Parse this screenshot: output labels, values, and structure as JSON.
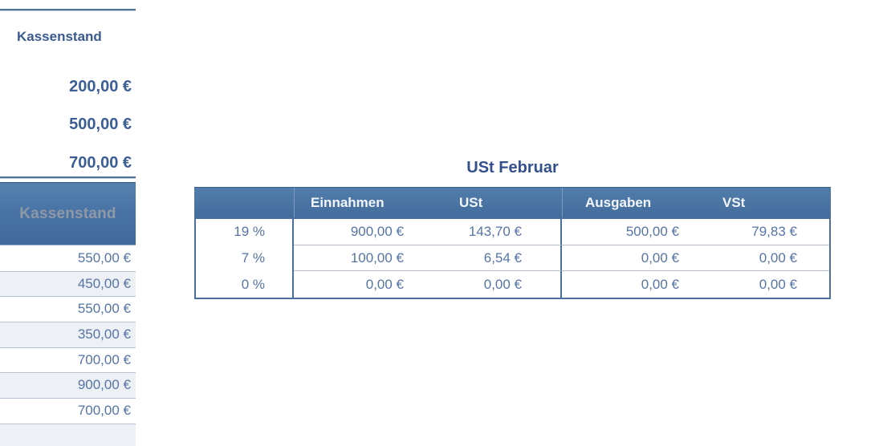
{
  "left_panel": {
    "upper": {
      "label": "Kassenstand",
      "values": [
        "200,00 €",
        "500,00 €",
        "700,00 €"
      ]
    },
    "table": {
      "header": "Kassenstand",
      "rows": [
        "550,00 €",
        "450,00 €",
        "550,00 €",
        "350,00 €",
        "700,00 €",
        "900,00 €",
        "700,00 €",
        ""
      ]
    }
  },
  "ust_table": {
    "title": "USt Februar",
    "columns": [
      "",
      "Einnahmen",
      "USt",
      "Ausgaben",
      "VSt"
    ],
    "rows": [
      {
        "rate": "19 %",
        "einnahmen": "900,00 €",
        "ust": "143,70 €",
        "ausgaben": "500,00 €",
        "vst": "79,83 €"
      },
      {
        "rate": "7 %",
        "einnahmen": "100,00 €",
        "ust": "6,54 €",
        "ausgaben": "0,00 €",
        "vst": "0,00 €"
      },
      {
        "rate": "0 %",
        "einnahmen": "0,00 €",
        "ust": "0,00 €",
        "ausgaben": "0,00 €",
        "vst": "0,00 €"
      }
    ]
  },
  "colors": {
    "header_blue_top": "#5580ae",
    "header_blue_bottom": "#40689b",
    "dark_border": "#4c6f9f",
    "light_separator": "#b7c2d0",
    "alt_row_bg": "#edf0f4",
    "bold_text": "#3b5e95",
    "cell_text": "#5674a4",
    "title_text": "#33518c",
    "header_label_gray": "#8f99a6"
  }
}
